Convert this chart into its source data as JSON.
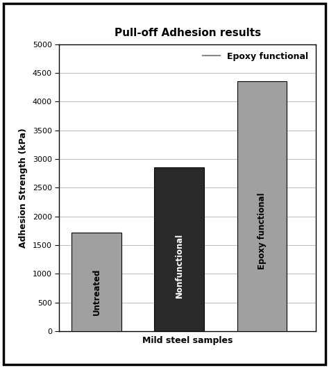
{
  "title": "Pull-off Adhesion results",
  "xlabel": "Mild steel samples",
  "ylabel": "Adhesion Strength (kPa)",
  "categories": [
    "Untreated",
    "Nonfunctional",
    "Epoxy functional"
  ],
  "values": [
    1720,
    2850,
    4350
  ],
  "bar_colors": [
    "#a0a0a0",
    "#2a2a2a",
    "#a0a0a0"
  ],
  "bar_positions": [
    1,
    2,
    3
  ],
  "ylim": [
    0,
    5000
  ],
  "yticks": [
    0,
    500,
    1000,
    1500,
    2000,
    2500,
    3000,
    3500,
    4000,
    4500,
    5000
  ],
  "bar_width": 0.6,
  "legend_label": "Epoxy functional",
  "legend_line_color": "#888888",
  "background_color": "#ffffff",
  "border_color": "#000000",
  "title_fontsize": 11,
  "axis_label_fontsize": 9,
  "tick_fontsize": 8,
  "bar_label_fontsize": 8.5
}
